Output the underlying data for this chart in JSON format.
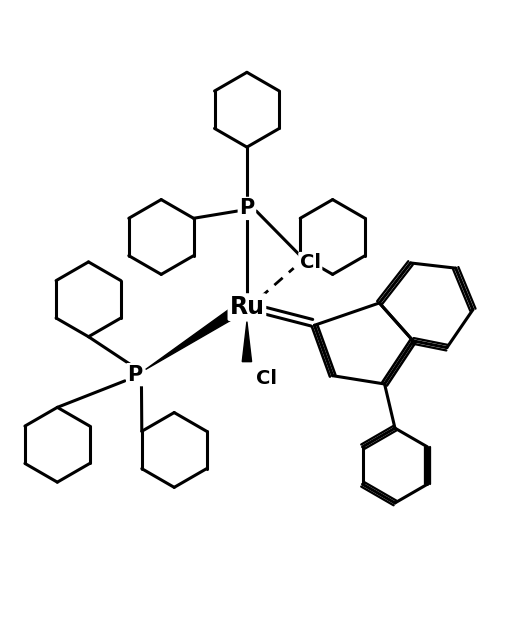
{
  "bg_color": "#ffffff",
  "line_color": "#000000",
  "line_width": 2.2,
  "text_color": "#000000",
  "fig_width": 5.25,
  "fig_height": 6.35,
  "dpi": 100,
  "ru_label": "Ru",
  "p_label": "P",
  "cl_label": "Cl",
  "font_size": 15,
  "label_font_size": 17,
  "hex_r": 0.72,
  "xlim": [
    0,
    10
  ],
  "ylim": [
    0,
    12
  ]
}
